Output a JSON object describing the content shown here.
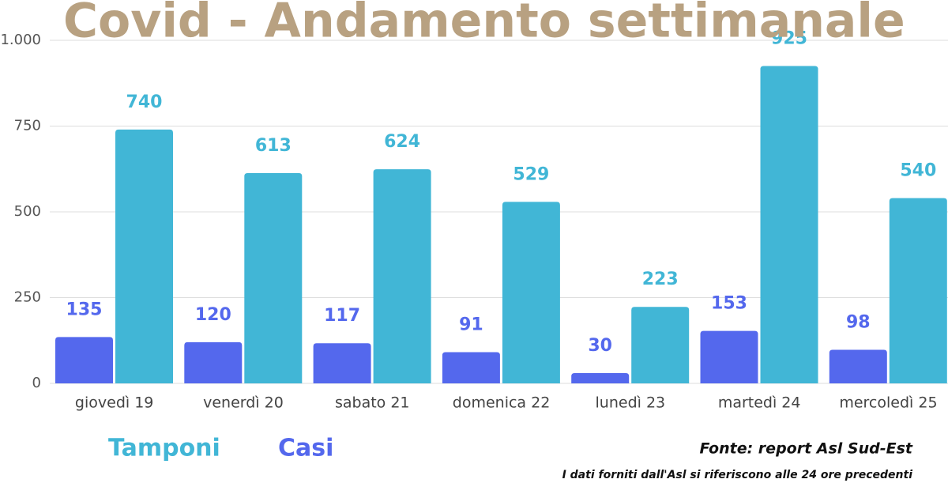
{
  "chart_data": {
    "type": "bar",
    "title": "Covid - Andamento settimanale",
    "categories": [
      "giovedì 19",
      "venerdì 20",
      "sabato 21",
      "domenica 22",
      "lunedì 23",
      "martedì 24",
      "mercoledì 25"
    ],
    "series": [
      {
        "name": "Tamponi",
        "color": "#41b6d6",
        "values": [
          740,
          613,
          624,
          529,
          223,
          925,
          540
        ]
      },
      {
        "name": "Casi",
        "color": "#5468ed",
        "values": [
          135,
          120,
          117,
          91,
          30,
          153,
          98
        ]
      }
    ],
    "ylim": [
      0,
      1000
    ],
    "yticks": [
      0,
      250,
      500,
      750,
      {
        "value": 1000,
        "label": "1.000"
      }
    ],
    "grid": true,
    "source": "Fonte: report Asl Sud-Est",
    "note": "I dati forniti dall'Asl si riferiscono alle 24 ore precedenti"
  }
}
